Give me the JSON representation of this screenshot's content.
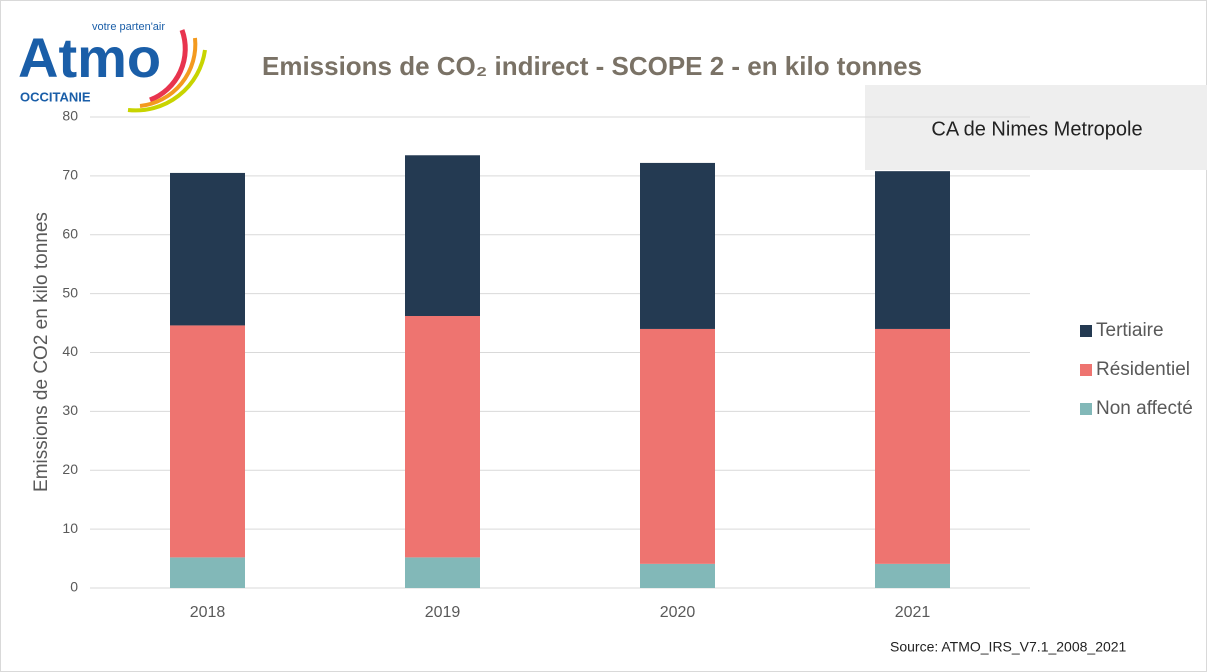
{
  "logo": {
    "name": "Atmo",
    "tagline": "votre parten'air",
    "region": "OCCITANIE"
  },
  "chart_data": {
    "type": "stacked_bar",
    "title": "Emissions de CO₂ indirect - SCOPE 2 - en kilo tonnes",
    "box_label": "CA de Nimes Metropole",
    "y_label": "Emissions de CO2 en kilo tonnes",
    "source": "Source:  ATMO_IRS_V7.1_2008_2021",
    "categories": [
      "2018",
      "2019",
      "2020",
      "2021"
    ],
    "series": [
      {
        "name": "Non affecté",
        "color": "#82b8b8",
        "values": [
          5.2,
          5.2,
          4.1,
          4.1
        ]
      },
      {
        "name": "Résidentiel",
        "color": "#ee7470",
        "values": [
          39.4,
          41.0,
          39.9,
          39.9
        ]
      },
      {
        "name": "Tertiaire",
        "color": "#243a52",
        "values": [
          25.9,
          27.3,
          28.2,
          26.8
        ]
      }
    ],
    "ylim": [
      0,
      80
    ],
    "yticks": [
      0,
      10,
      20,
      30,
      40,
      50,
      60,
      70,
      80
    ],
    "grid": true,
    "legend": "right"
  }
}
